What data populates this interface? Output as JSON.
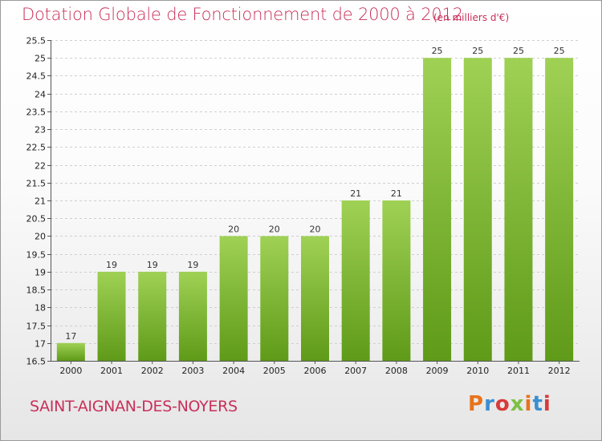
{
  "header": {
    "title": "Dotation Globale de Fonctionnement de 2000 à 2012",
    "units": "(en milliers d'€)"
  },
  "footer": {
    "commune": "SAINT-AIGNAN-DES-NOYERS",
    "logo": "Proxiti"
  },
  "colors": {
    "accent": "#c8305a",
    "bar_top": "#9fd155",
    "bar_bottom": "#5f9a18",
    "logo_letters": [
      "#e8731c",
      "#3a8fd0",
      "#d83a3a",
      "#7cc043",
      "#e8731c",
      "#3a8fd0",
      "#d83a3a"
    ]
  },
  "chart_data": {
    "type": "bar",
    "title": "Dotation Globale de Fonctionnement de 2000 à 2012",
    "subtitle": "(en milliers d'€)",
    "xlabel": "",
    "ylabel": "",
    "categories": [
      "2000",
      "2001",
      "2002",
      "2003",
      "2004",
      "2005",
      "2006",
      "2007",
      "2008",
      "2009",
      "2010",
      "2011",
      "2012"
    ],
    "values": [
      17,
      19,
      19,
      19,
      20,
      20,
      20,
      21,
      21,
      25,
      25,
      25,
      25
    ],
    "ylim": [
      16.5,
      25.5
    ],
    "yticks": [
      16.5,
      17,
      17.5,
      18,
      18.5,
      19,
      19.5,
      20,
      20.5,
      21,
      21.5,
      22,
      22.5,
      23,
      23.5,
      24,
      24.5,
      25,
      25.5
    ],
    "ytick_labels": [
      "16.5",
      "17",
      "17.5",
      "18",
      "18.5",
      "19",
      "19.5",
      "20",
      "20.5",
      "21",
      "21.5",
      "22",
      "22.5",
      "23",
      "23.5",
      "24",
      "24.5",
      "25",
      "25.5"
    ],
    "grid": true,
    "legend": "none"
  }
}
